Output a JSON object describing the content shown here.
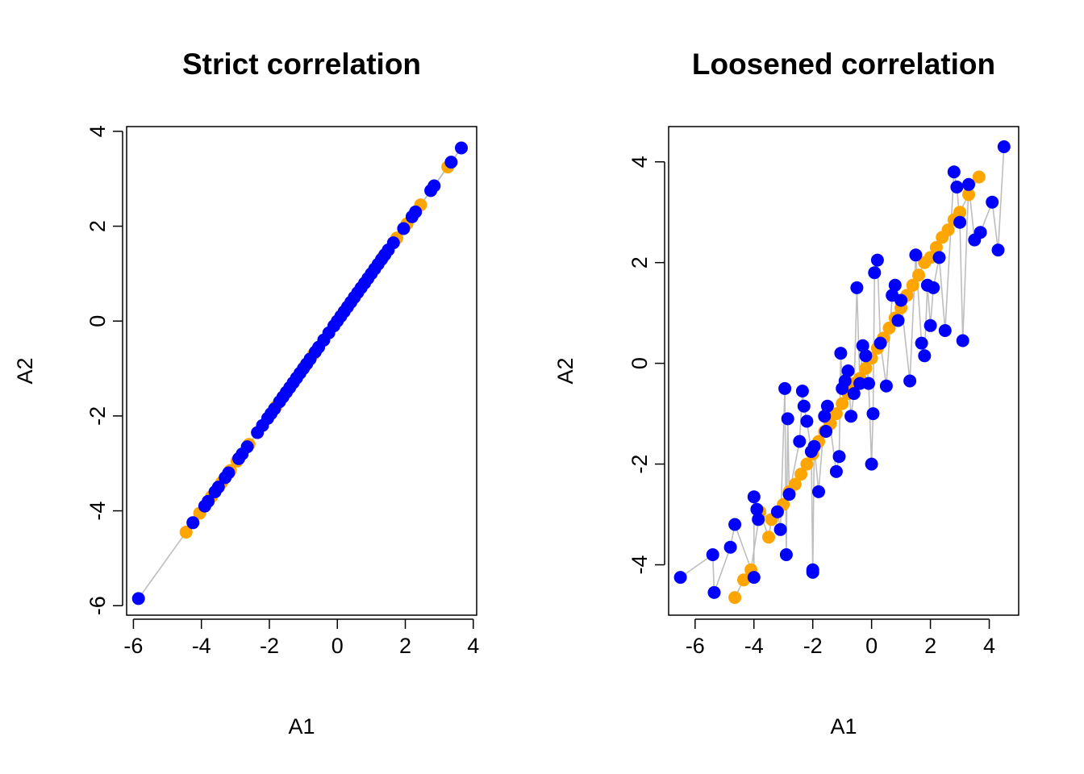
{
  "colors": {
    "series_a": "#FFA500",
    "series_b": "#0000FF",
    "connector": "#BEBEBE",
    "axis": "#000000"
  },
  "chart_data": [
    {
      "type": "scatter",
      "title": "Strict correlation",
      "xlabel": "A1",
      "ylabel": "A2",
      "xlim": [
        -6.2,
        4.1
      ],
      "ylim": [
        -6.2,
        4.1
      ],
      "xticks": [
        -6,
        -4,
        -2,
        0,
        2,
        4
      ],
      "yticks": [
        -6,
        -4,
        -2,
        0,
        2,
        4
      ],
      "grid": false,
      "connectors": true,
      "series": [
        {
          "color": "#FFA500",
          "x": [
            -4.45,
            -4.05,
            -3.7,
            -3.4,
            -3.15,
            -2.95,
            -2.6,
            -2.35,
            -2.05,
            -1.8,
            -1.5,
            -1.2,
            -0.95,
            -0.7,
            -0.4,
            -0.1,
            0.2,
            0.5,
            0.8,
            1.1,
            1.35,
            1.75,
            2.05,
            2.45,
            2.85,
            3.25
          ],
          "y": [
            -4.45,
            -4.05,
            -3.7,
            -3.4,
            -3.15,
            -2.95,
            -2.6,
            -2.35,
            -2.05,
            -1.8,
            -1.5,
            -1.2,
            -0.95,
            -0.7,
            -0.4,
            -0.1,
            0.2,
            0.5,
            0.8,
            1.1,
            1.35,
            1.75,
            2.05,
            2.45,
            2.85,
            3.25
          ]
        },
        {
          "color": "#0000FF",
          "x": [
            -5.85,
            -4.25,
            -3.9,
            -3.8,
            -3.6,
            -3.5,
            -3.3,
            -3.2,
            -2.9,
            -2.8,
            -2.65,
            -2.35,
            -2.2,
            -2.05,
            -1.95,
            -1.85,
            -1.7,
            -1.6,
            -1.5,
            -1.4,
            -1.3,
            -1.2,
            -1.1,
            -1.0,
            -0.9,
            -0.8,
            -0.65,
            -0.55,
            -0.4,
            -0.25,
            -0.1,
            0.0,
            0.1,
            0.2,
            0.3,
            0.4,
            0.5,
            0.6,
            0.7,
            0.8,
            0.9,
            1.0,
            1.1,
            1.2,
            1.3,
            1.4,
            1.5,
            1.65,
            1.95,
            2.2,
            2.3,
            2.75,
            2.85,
            3.35,
            3.65
          ],
          "y": [
            -5.85,
            -4.25,
            -3.9,
            -3.8,
            -3.6,
            -3.5,
            -3.3,
            -3.2,
            -2.9,
            -2.8,
            -2.65,
            -2.35,
            -2.2,
            -2.05,
            -1.95,
            -1.85,
            -1.7,
            -1.6,
            -1.5,
            -1.4,
            -1.3,
            -1.2,
            -1.1,
            -1.0,
            -0.9,
            -0.8,
            -0.65,
            -0.55,
            -0.4,
            -0.25,
            -0.1,
            0.0,
            0.1,
            0.2,
            0.3,
            0.4,
            0.5,
            0.6,
            0.7,
            0.8,
            0.9,
            1.0,
            1.1,
            1.2,
            1.3,
            1.4,
            1.5,
            1.65,
            1.95,
            2.2,
            2.3,
            2.75,
            2.85,
            3.35,
            3.65
          ]
        }
      ]
    },
    {
      "type": "scatter",
      "title": "Loosened correlation",
      "xlabel": "A1",
      "ylabel": "A2",
      "xlim": [
        -6.9,
        5.0
      ],
      "ylim": [
        -5.0,
        4.7
      ],
      "xticks": [
        -6,
        -4,
        -2,
        0,
        2,
        4
      ],
      "yticks": [
        -4,
        -2,
        0,
        2,
        4
      ],
      "grid": false,
      "connectors": true,
      "series": [
        {
          "color": "#FFA500",
          "x": [
            -4.65,
            -4.35,
            -4.1,
            -3.8,
            -3.5,
            -3.4,
            -3.2,
            -3.0,
            -2.8,
            -2.6,
            -2.4,
            -2.2,
            -2.0,
            -1.8,
            -1.6,
            -1.4,
            -1.2,
            -1.0,
            -0.8,
            -0.6,
            -0.4,
            -0.2,
            0.0,
            0.2,
            0.4,
            0.6,
            0.8,
            1.0,
            1.2,
            1.4,
            1.6,
            1.8,
            2.0,
            2.2,
            2.4,
            2.6,
            2.8,
            3.0,
            3.3,
            3.65
          ],
          "y": [
            -4.65,
            -4.3,
            -4.1,
            -2.95,
            -3.45,
            -3.1,
            -2.95,
            -2.8,
            -2.55,
            -2.4,
            -2.2,
            -2.0,
            -1.8,
            -1.55,
            -1.35,
            -1.2,
            -1.0,
            -0.8,
            -0.6,
            -0.4,
            -0.3,
            -0.1,
            0.1,
            0.3,
            0.5,
            0.7,
            0.9,
            1.1,
            1.35,
            1.55,
            1.75,
            2.0,
            2.1,
            2.3,
            2.5,
            2.65,
            2.85,
            3.0,
            3.35,
            3.7
          ]
        },
        {
          "color": "#0000FF",
          "x": [
            -6.5,
            -5.4,
            -5.35,
            -4.8,
            -4.65,
            -4.0,
            -4.0,
            -3.9,
            -3.85,
            -3.2,
            -3.1,
            -2.95,
            -2.9,
            -2.85,
            -2.8,
            -2.45,
            -2.35,
            -2.3,
            -2.2,
            -2.05,
            -2.0,
            -2.0,
            -1.95,
            -1.8,
            -1.6,
            -1.55,
            -1.5,
            -1.2,
            -1.1,
            -1.05,
            -1.0,
            -0.9,
            -0.8,
            -0.7,
            -0.6,
            -0.5,
            -0.4,
            -0.3,
            -0.2,
            -0.1,
            0.0,
            0.05,
            0.1,
            0.2,
            0.3,
            0.5,
            0.7,
            0.8,
            0.9,
            1.0,
            1.3,
            1.5,
            1.7,
            1.8,
            1.9,
            2.0,
            2.1,
            2.3,
            2.5,
            2.8,
            2.9,
            3.0,
            3.1,
            3.3,
            3.5,
            3.7,
            4.1,
            4.3,
            4.5
          ],
          "y": [
            -4.25,
            -3.8,
            -4.55,
            -3.65,
            -3.2,
            -4.25,
            -2.65,
            -2.9,
            -3.1,
            -2.95,
            -3.3,
            -0.5,
            -3.8,
            -1.1,
            -2.6,
            -1.55,
            -0.55,
            -0.85,
            -1.15,
            -1.75,
            -4.1,
            -4.15,
            -1.65,
            -2.55,
            -1.05,
            -1.35,
            -0.85,
            -2.15,
            -1.85,
            0.2,
            -0.5,
            -0.35,
            -0.15,
            -1.05,
            -0.6,
            1.5,
            -0.4,
            0.35,
            0.15,
            -0.4,
            -2.0,
            -1.0,
            1.8,
            2.05,
            0.4,
            -0.45,
            1.35,
            1.55,
            0.85,
            1.25,
            -0.35,
            2.15,
            0.4,
            0.15,
            1.55,
            0.75,
            1.5,
            2.1,
            0.65,
            3.8,
            3.5,
            2.8,
            0.45,
            3.55,
            2.45,
            2.6,
            3.2,
            2.25,
            4.3
          ]
        }
      ]
    }
  ]
}
